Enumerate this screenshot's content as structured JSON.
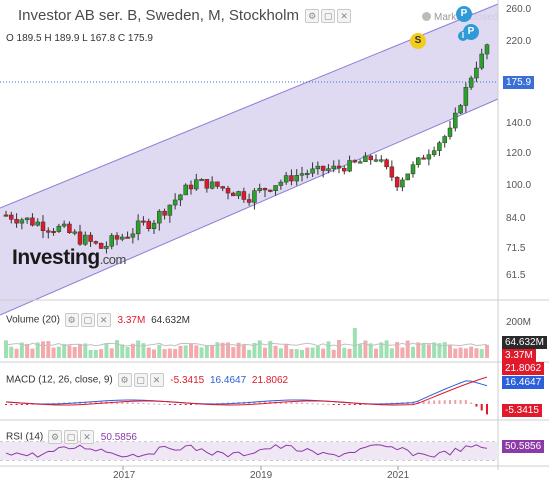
{
  "header": {
    "title": "Investor AB ser. B, Sweden, M, Stockholm",
    "market_status": "Market Closed",
    "ohlc": "O 189.5  H 189.9  L 167.8  C 175.9"
  },
  "brand": {
    "logo": "Investing",
    "logo_suffix": ".com"
  },
  "price_axis": {
    "ticks": [
      "260.0",
      "220.0",
      "175.9",
      "140.0",
      "120.0",
      "100.0",
      "84.0",
      "71.5",
      "61.5"
    ],
    "last_price": "175.9"
  },
  "time_axis": {
    "ticks": [
      "2017",
      "2019",
      "2021"
    ]
  },
  "markers": {
    "s": "S",
    "p1": "P",
    "p2": "P",
    "i": "I"
  },
  "volume": {
    "label": "Volume (20)",
    "value_red": "3.37M",
    "value_ma": "64.632M",
    "axis_top": "200M",
    "tag_ma": "64.632M",
    "tag_red": "3.37M"
  },
  "macd": {
    "label": "MACD (12, 26, close, 9)",
    "hist": "-5.3415",
    "macd": "16.4647",
    "signal": "21.8062",
    "tag_signal": "21.8062",
    "tag_macd": "16.4647",
    "tag_hist": "-5.3415"
  },
  "rsi": {
    "label": "RSI (14)",
    "value": "50.5856",
    "tag": "50.5856"
  },
  "colors": {
    "up": "#2ca02c",
    "down": "#e0192b",
    "channel_fill": "#d9d3ee",
    "channel_line": "#8e7ed6",
    "price_tag": "#3b6fd8",
    "volume_up": "#9fe0b2",
    "volume_down": "#f3a9ad",
    "macd_line": "#2c5fdc",
    "signal_line": "#e0192b",
    "rsi_line": "#8b3aa8",
    "marker_s": "#f2cc1a",
    "marker_p": "#2e9ad8"
  }
}
